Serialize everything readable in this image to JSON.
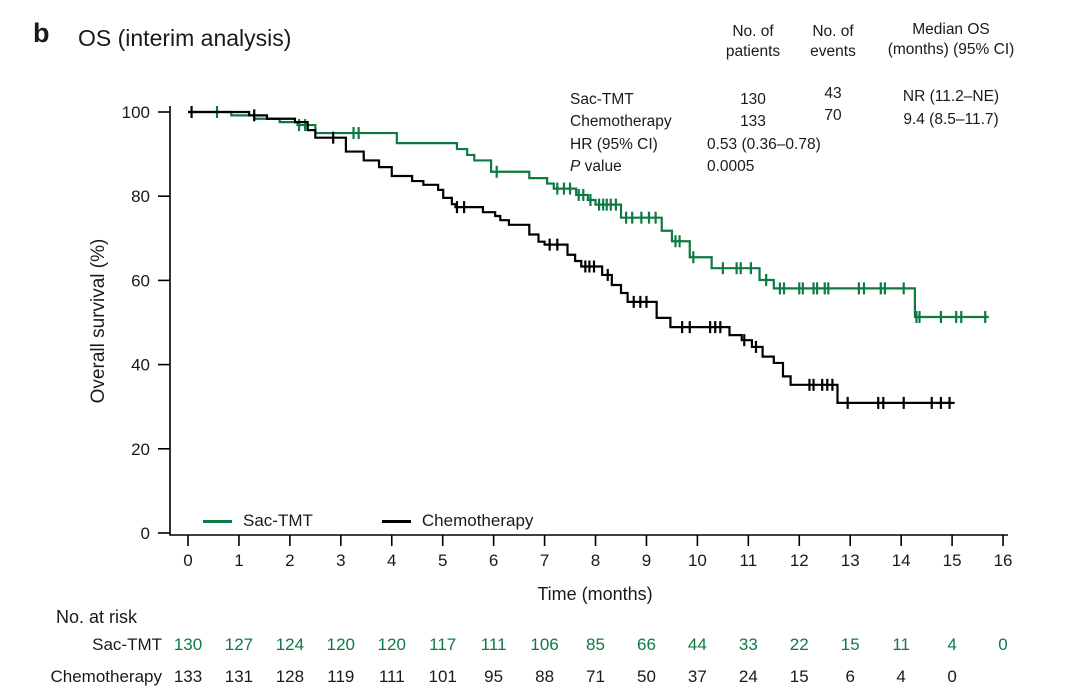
{
  "panel": {
    "label": "b",
    "title": "OS (interim analysis)"
  },
  "stats": {
    "col_headers": {
      "patients_l1": "No. of",
      "patients_l2": "patients",
      "events_l1": "No. of",
      "events_l2": "events",
      "median_l1": "Median OS",
      "median_l2": "(months) (95% CI)"
    },
    "rows": [
      {
        "label": "Sac-TMT",
        "patients": "130",
        "events": "43",
        "median": "NR (11.2–NE)"
      },
      {
        "label": "Chemotherapy",
        "patients": "133",
        "events": "70",
        "median": "9.4 (8.5–11.7)"
      }
    ],
    "hr_label": "HR (95% CI)",
    "hr_value": "0.53 (0.36–0.78)",
    "p_label_italic": "P",
    "p_label_rest": " value",
    "p_value": "0.0005"
  },
  "legend": [
    {
      "label": "Sac-TMT",
      "color": "#0d7a43"
    },
    {
      "label": "Chemotherapy",
      "color": "#000000"
    }
  ],
  "risk_table": {
    "header": "No. at risk",
    "rows": [
      {
        "label": "Sac-TMT",
        "color": "#0d7a43",
        "values": [
          130,
          127,
          124,
          120,
          120,
          117,
          111,
          106,
          85,
          66,
          44,
          33,
          22,
          15,
          11,
          4,
          0
        ]
      },
      {
        "label": "Chemotherapy",
        "color": "#1a1a1a",
        "values": [
          133,
          131,
          128,
          119,
          111,
          101,
          95,
          88,
          71,
          50,
          37,
          24,
          15,
          6,
          4,
          0
        ]
      }
    ]
  },
  "chart_data": {
    "type": "line",
    "subtype": "kaplan-meier-step",
    "title": "OS (interim analysis)",
    "xlabel": "Time (months)",
    "ylabel": "Overall survival (%)",
    "xlim": [
      0,
      16
    ],
    "ylim": [
      0,
      100
    ],
    "xticks": [
      0,
      1,
      2,
      3,
      4,
      5,
      6,
      7,
      8,
      9,
      10,
      11,
      12,
      13,
      14,
      15,
      16
    ],
    "yticks": [
      0,
      20,
      40,
      60,
      80,
      100
    ],
    "grid": false,
    "legend_position": "inside-bottom-left",
    "annotations": {
      "hr": "HR (95% CI) 0.53 (0.36–0.78)",
      "p_value": "0.0005",
      "median_os": {
        "Sac-TMT": "NR (11.2–NE)",
        "Chemotherapy": "9.4 (8.5–11.7)"
      },
      "n_patients": {
        "Sac-TMT": 130,
        "Chemotherapy": 133
      },
      "n_events": {
        "Sac-TMT": 43,
        "Chemotherapy": 70
      }
    },
    "series": [
      {
        "name": "Sac-TMT",
        "color": "#0d7a43",
        "end_time": 15.72,
        "step_points": [
          [
            0,
            100
          ],
          [
            0.85,
            99.2
          ],
          [
            1.3,
            98.4
          ],
          [
            1.8,
            97.6
          ],
          [
            2.15,
            96.9
          ],
          [
            2.5,
            95.0
          ],
          [
            4.1,
            92.6
          ],
          [
            5.28,
            91.2
          ],
          [
            5.48,
            89.8
          ],
          [
            5.62,
            88.5
          ],
          [
            5.95,
            85.8
          ],
          [
            6.7,
            84.3
          ],
          [
            7.05,
            83.0
          ],
          [
            7.18,
            81.8
          ],
          [
            7.62,
            80.3
          ],
          [
            7.85,
            79.1
          ],
          [
            8.0,
            78.0
          ],
          [
            8.5,
            74.9
          ],
          [
            9.3,
            71.8
          ],
          [
            9.5,
            69.3
          ],
          [
            9.85,
            65.5
          ],
          [
            10.28,
            62.9
          ],
          [
            11.22,
            60.1
          ],
          [
            11.5,
            58.1
          ],
          [
            14.27,
            51.3
          ]
        ],
        "censor_marks": [
          [
            0.57,
            100
          ],
          [
            2.18,
            96.9
          ],
          [
            2.3,
            96.9
          ],
          [
            3.25,
            95.0
          ],
          [
            3.35,
            95.0
          ],
          [
            6.06,
            85.8
          ],
          [
            7.25,
            81.8
          ],
          [
            7.38,
            81.8
          ],
          [
            7.5,
            81.8
          ],
          [
            7.67,
            80.3
          ],
          [
            7.76,
            80.3
          ],
          [
            7.9,
            79.1
          ],
          [
            8.07,
            78.0
          ],
          [
            8.15,
            78.0
          ],
          [
            8.22,
            78.0
          ],
          [
            8.3,
            78.0
          ],
          [
            8.4,
            78.0
          ],
          [
            8.6,
            74.9
          ],
          [
            8.72,
            74.9
          ],
          [
            8.9,
            74.9
          ],
          [
            9.05,
            74.9
          ],
          [
            9.18,
            74.9
          ],
          [
            9.57,
            69.3
          ],
          [
            9.65,
            69.3
          ],
          [
            9.92,
            65.5
          ],
          [
            10.5,
            62.9
          ],
          [
            10.77,
            62.9
          ],
          [
            10.85,
            62.9
          ],
          [
            11.05,
            62.9
          ],
          [
            11.35,
            60.1
          ],
          [
            11.62,
            58.1
          ],
          [
            11.7,
            58.1
          ],
          [
            12.0,
            58.1
          ],
          [
            12.07,
            58.1
          ],
          [
            12.28,
            58.1
          ],
          [
            12.35,
            58.1
          ],
          [
            12.5,
            58.1
          ],
          [
            12.57,
            58.1
          ],
          [
            13.17,
            58.1
          ],
          [
            13.27,
            58.1
          ],
          [
            13.6,
            58.1
          ],
          [
            13.68,
            58.1
          ],
          [
            14.05,
            58.1
          ],
          [
            14.3,
            51.3
          ],
          [
            14.36,
            51.3
          ],
          [
            14.78,
            51.3
          ],
          [
            15.08,
            51.3
          ],
          [
            15.18,
            51.3
          ],
          [
            15.65,
            51.3
          ]
        ]
      },
      {
        "name": "Chemotherapy",
        "color": "#000000",
        "end_time": 15.05,
        "step_points": [
          [
            0,
            100
          ],
          [
            1.2,
            99.2
          ],
          [
            1.55,
            98.4
          ],
          [
            2.1,
            97.6
          ],
          [
            2.35,
            95.7
          ],
          [
            2.5,
            93.9
          ],
          [
            3.1,
            90.6
          ],
          [
            3.45,
            88.5
          ],
          [
            3.75,
            86.9
          ],
          [
            4.0,
            84.8
          ],
          [
            4.4,
            83.6
          ],
          [
            4.62,
            82.7
          ],
          [
            4.91,
            81.5
          ],
          [
            5.01,
            79.6
          ],
          [
            5.18,
            78.1
          ],
          [
            5.25,
            77.4
          ],
          [
            5.79,
            76.2
          ],
          [
            6.03,
            75.3
          ],
          [
            6.13,
            74.3
          ],
          [
            6.3,
            73.2
          ],
          [
            6.7,
            70.9
          ],
          [
            6.88,
            69.2
          ],
          [
            7.0,
            68.5
          ],
          [
            7.45,
            66.1
          ],
          [
            7.6,
            64.6
          ],
          [
            7.72,
            63.3
          ],
          [
            8.13,
            61.3
          ],
          [
            8.32,
            58.9
          ],
          [
            8.5,
            57.0
          ],
          [
            8.63,
            54.9
          ],
          [
            9.2,
            51.1
          ],
          [
            9.47,
            48.9
          ],
          [
            10.63,
            47.0
          ],
          [
            10.87,
            45.8
          ],
          [
            11.07,
            44.2
          ],
          [
            11.28,
            41.9
          ],
          [
            11.5,
            40.4
          ],
          [
            11.68,
            37.2
          ],
          [
            11.83,
            35.2
          ],
          [
            12.75,
            30.9
          ]
        ],
        "censor_marks": [
          [
            0.07,
            100
          ],
          [
            1.3,
            99.2
          ],
          [
            2.85,
            93.9
          ],
          [
            5.28,
            77.4
          ],
          [
            5.42,
            77.4
          ],
          [
            7.1,
            68.5
          ],
          [
            7.25,
            68.5
          ],
          [
            7.8,
            63.3
          ],
          [
            7.88,
            63.3
          ],
          [
            7.97,
            63.3
          ],
          [
            8.24,
            61.3
          ],
          [
            8.75,
            54.9
          ],
          [
            8.88,
            54.9
          ],
          [
            9.0,
            54.9
          ],
          [
            9.7,
            48.9
          ],
          [
            9.85,
            48.9
          ],
          [
            10.25,
            48.9
          ],
          [
            10.35,
            48.9
          ],
          [
            10.45,
            48.9
          ],
          [
            10.92,
            45.8
          ],
          [
            11.15,
            44.2
          ],
          [
            12.2,
            35.2
          ],
          [
            12.28,
            35.2
          ],
          [
            12.45,
            35.2
          ],
          [
            12.55,
            35.2
          ],
          [
            12.65,
            35.2
          ],
          [
            12.95,
            30.9
          ],
          [
            13.55,
            30.9
          ],
          [
            13.65,
            30.9
          ],
          [
            14.05,
            30.9
          ],
          [
            14.6,
            30.9
          ],
          [
            14.78,
            30.9
          ],
          [
            14.95,
            30.9
          ]
        ]
      }
    ]
  }
}
